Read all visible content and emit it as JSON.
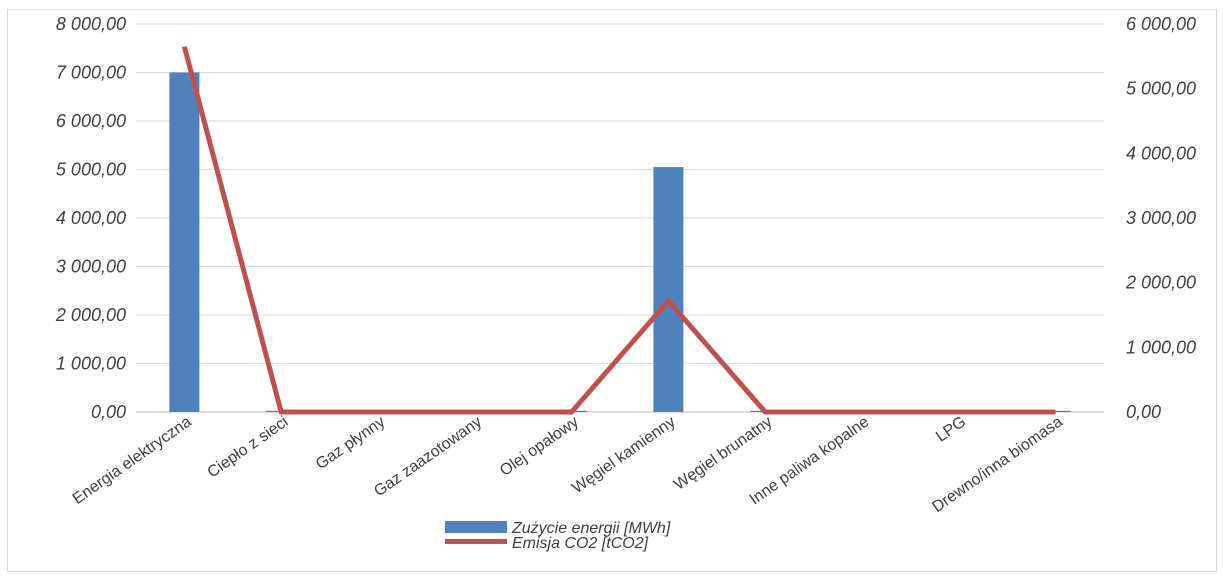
{
  "chart_data": {
    "type": "bar",
    "categories": [
      "Energia elektryczna",
      "Ciepło z sieci",
      "Gaz płynny",
      "Gaz zaazotowany",
      "Olej opałowy",
      "Węgiel kamienny",
      "Węgiel brunatny",
      "Inne paliwa kopalne",
      "LPG",
      "Drewno/inna biomasa"
    ],
    "series": [
      {
        "name": "Zużycie energii [MWh]",
        "type": "bar",
        "axis": "left",
        "color": "#4f81bd",
        "values": [
          7000,
          5,
          0,
          0,
          2,
          5050,
          5,
          0,
          0,
          5
        ]
      },
      {
        "name": "Emisja CO2 [tCO2]",
        "type": "line",
        "axis": "right",
        "color": "#c0504d",
        "values": [
          5650,
          0,
          0,
          0,
          0,
          1720,
          0,
          0,
          0,
          0
        ]
      }
    ],
    "ylim_left": [
      0,
      8000
    ],
    "ylim_right": [
      0,
      6000
    ],
    "yticks_left": [
      "0,00",
      "1 000,00",
      "2 000,00",
      "3 000,00",
      "4 000,00",
      "5 000,00",
      "6 000,00",
      "7 000,00",
      "8 000,00"
    ],
    "yticks_right": [
      "0,00",
      "1 000,00",
      "2 000,00",
      "3 000,00",
      "4 000,00",
      "5 000,00",
      "6 000,00"
    ],
    "grid": true,
    "legend_position": "bottom"
  }
}
